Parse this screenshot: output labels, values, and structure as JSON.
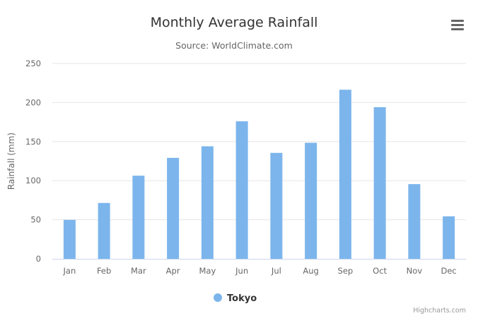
{
  "chart_data": {
    "type": "bar",
    "title": "Monthly Average Rainfall",
    "subtitle": "Source: WorldClimate.com",
    "xlabel": "",
    "ylabel": "Rainfall (mm)",
    "categories": [
      "Jan",
      "Feb",
      "Mar",
      "Apr",
      "May",
      "Jun",
      "Jul",
      "Aug",
      "Sep",
      "Oct",
      "Nov",
      "Dec"
    ],
    "series": [
      {
        "name": "Tokyo",
        "color": "#7cb5ec",
        "values": [
          49.9,
          71.5,
          106.4,
          129.2,
          144.0,
          176.0,
          135.6,
          148.5,
          216.4,
          194.1,
          95.6,
          54.4
        ]
      }
    ],
    "ylim": [
      0,
      250
    ],
    "yticks": [
      0,
      50,
      100,
      150,
      200,
      250
    ],
    "grid": true,
    "legend": "bottom-center"
  },
  "ui": {
    "menu_icon": "hamburger-menu-icon",
    "credits": "Highcharts.com"
  },
  "colors": {
    "title": "#333333",
    "subtitle": "#666666",
    "axis_text": "#666666",
    "grid": "#e6e6e6",
    "axis_line": "#ccd6eb",
    "menu": "#666666"
  }
}
